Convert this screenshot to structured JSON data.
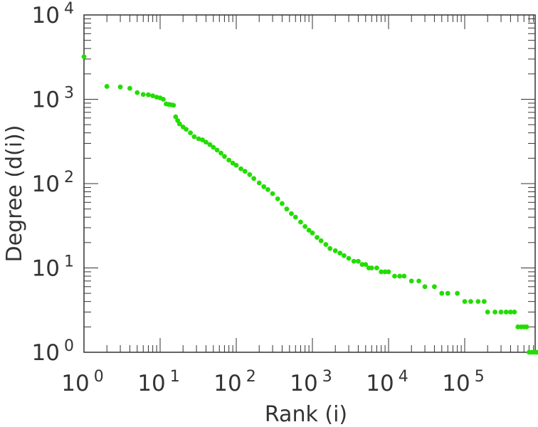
{
  "chart_data": {
    "type": "scatter",
    "title": "",
    "xlabel": "Rank (i)",
    "ylabel": "Degree (d(i))",
    "xscale": "log",
    "yscale": "log",
    "xlim": [
      1,
      1000000
    ],
    "ylim": [
      1,
      10000
    ],
    "grid": false,
    "legend": "none",
    "marker_color": "#22dd00",
    "axis_color": "#333333",
    "xticks": [
      {
        "base": "10",
        "exp": "0",
        "value": 1
      },
      {
        "base": "10",
        "exp": "1",
        "value": 10
      },
      {
        "base": "10",
        "exp": "2",
        "value": 100
      },
      {
        "base": "10",
        "exp": "3",
        "value": 1000
      },
      {
        "base": "10",
        "exp": "4",
        "value": 10000
      },
      {
        "base": "10",
        "exp": "5",
        "value": 100000
      }
    ],
    "yticks": [
      {
        "base": "10",
        "exp": "0",
        "value": 1
      },
      {
        "base": "10",
        "exp": "1",
        "value": 10
      },
      {
        "base": "10",
        "exp": "2",
        "value": 100
      },
      {
        "base": "10",
        "exp": "3",
        "value": 1000
      },
      {
        "base": "10",
        "exp": "4",
        "value": 10000
      }
    ],
    "points": [
      [
        1,
        3200
      ],
      [
        2,
        1420
      ],
      [
        3,
        1400
      ],
      [
        4,
        1350
      ],
      [
        5,
        1200
      ],
      [
        6,
        1140
      ],
      [
        7,
        1130
      ],
      [
        8,
        1100
      ],
      [
        9,
        1060
      ],
      [
        10,
        1040
      ],
      [
        11,
        1000
      ],
      [
        12,
        880
      ],
      [
        13,
        870
      ],
      [
        14,
        860
      ],
      [
        15,
        850
      ],
      [
        16,
        620
      ],
      [
        17,
        560
      ],
      [
        18,
        510
      ],
      [
        20,
        470
      ],
      [
        22,
        440
      ],
      [
        25,
        400
      ],
      [
        28,
        360
      ],
      [
        32,
        340
      ],
      [
        36,
        330
      ],
      [
        40,
        310
      ],
      [
        45,
        290
      ],
      [
        50,
        270
      ],
      [
        56,
        250
      ],
      [
        63,
        230
      ],
      [
        70,
        210
      ],
      [
        80,
        190
      ],
      [
        90,
        175
      ],
      [
        100,
        165
      ],
      [
        115,
        150
      ],
      [
        130,
        140
      ],
      [
        150,
        128
      ],
      [
        170,
        115
      ],
      [
        200,
        102
      ],
      [
        230,
        92
      ],
      [
        260,
        85
      ],
      [
        300,
        76
      ],
      [
        350,
        66
      ],
      [
        400,
        58
      ],
      [
        460,
        50
      ],
      [
        530,
        44
      ],
      [
        600,
        40
      ],
      [
        700,
        35
      ],
      [
        800,
        31
      ],
      [
        900,
        28
      ],
      [
        1000,
        26
      ],
      [
        1150,
        23
      ],
      [
        1300,
        21
      ],
      [
        1500,
        19
      ],
      [
        1700,
        17
      ],
      [
        2000,
        16
      ],
      [
        2300,
        15
      ],
      [
        2600,
        14
      ],
      [
        3000,
        13
      ],
      [
        3500,
        12
      ],
      [
        4000,
        12
      ],
      [
        4500,
        11
      ],
      [
        5000,
        11
      ],
      [
        5500,
        10
      ],
      [
        6000,
        10
      ],
      [
        7000,
        10
      ],
      [
        8000,
        9
      ],
      [
        9000,
        9
      ],
      [
        10000,
        9
      ],
      [
        12000,
        8
      ],
      [
        14000,
        8
      ],
      [
        16000,
        8
      ],
      [
        20000,
        7
      ],
      [
        25000,
        7
      ],
      [
        30000,
        6
      ],
      [
        40000,
        6
      ],
      [
        50000,
        5
      ],
      [
        60000,
        5
      ],
      [
        80000,
        5
      ],
      [
        100000,
        4
      ],
      [
        120000,
        4
      ],
      [
        150000,
        4
      ],
      [
        180000,
        4
      ],
      [
        200000,
        3
      ],
      [
        250000,
        3
      ],
      [
        300000,
        3
      ],
      [
        350000,
        3
      ],
      [
        400000,
        3
      ],
      [
        450000,
        3
      ],
      [
        500000,
        2
      ],
      [
        550000,
        2
      ],
      [
        600000,
        2
      ],
      [
        650000,
        2
      ],
      [
        700000,
        1
      ],
      [
        760000,
        1
      ],
      [
        820000,
        1
      ],
      [
        880000,
        1
      ],
      [
        940000,
        1
      ]
    ]
  }
}
